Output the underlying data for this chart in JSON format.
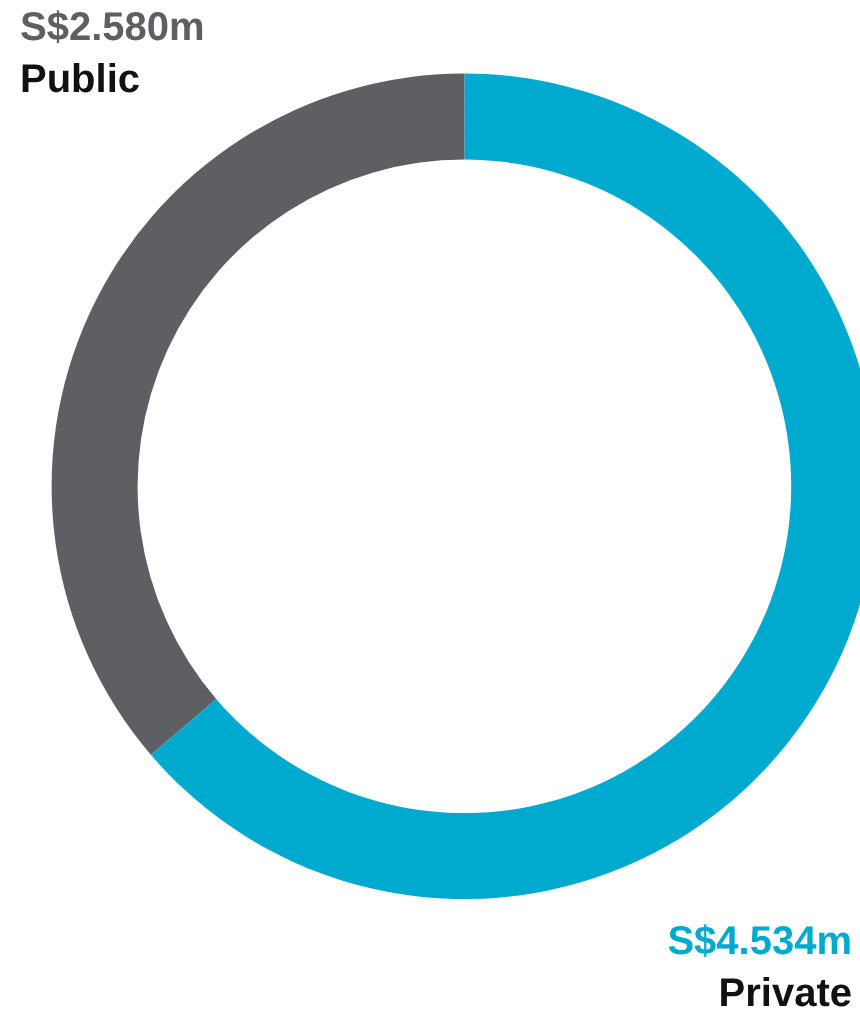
{
  "chart_data": {
    "type": "donut",
    "categories": [
      "Private",
      "Public"
    ],
    "values": [
      63.73,
      36.27
    ],
    "colors": [
      "#00aacf",
      "#5e5f63"
    ],
    "value_labels": [
      "S$4.534m",
      "S$2.580m"
    ],
    "legend": false
  }
}
